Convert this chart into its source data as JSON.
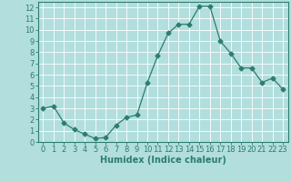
{
  "x": [
    0,
    1,
    2,
    3,
    4,
    5,
    6,
    7,
    8,
    9,
    10,
    11,
    12,
    13,
    14,
    15,
    16,
    17,
    18,
    19,
    20,
    21,
    22,
    23
  ],
  "y": [
    3,
    3.2,
    1.7,
    1.1,
    0.7,
    0.3,
    0.4,
    1.5,
    2.2,
    2.4,
    5.3,
    7.7,
    9.7,
    10.5,
    10.5,
    12.1,
    12.1,
    9.0,
    7.9,
    6.6,
    6.6,
    5.3,
    5.7,
    4.7
  ],
  "line_color": "#2d7d6e",
  "marker": "D",
  "marker_size": 2.5,
  "bg_color": "#b2dede",
  "grid_color": "#ffffff",
  "xlabel": "Humidex (Indice chaleur)",
  "xlim": [
    -0.5,
    23.5
  ],
  "ylim": [
    0,
    12.5
  ],
  "yticks": [
    0,
    1,
    2,
    3,
    4,
    5,
    6,
    7,
    8,
    9,
    10,
    11,
    12
  ],
  "xticks": [
    0,
    1,
    2,
    3,
    4,
    5,
    6,
    7,
    8,
    9,
    10,
    11,
    12,
    13,
    14,
    15,
    16,
    17,
    18,
    19,
    20,
    21,
    22,
    23
  ],
  "tick_color": "#2d7d6e",
  "label_fontsize": 7,
  "tick_fontsize": 6,
  "linewidth": 0.9
}
